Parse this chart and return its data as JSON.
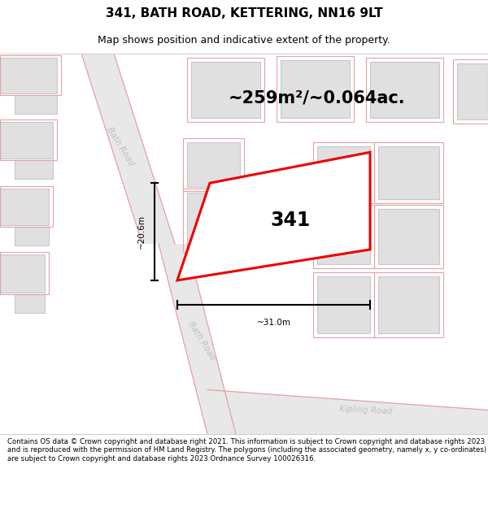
{
  "title": "341, BATH ROAD, KETTERING, NN16 9LT",
  "subtitle": "Map shows position and indicative extent of the property.",
  "area_text": "~259m²/~0.064ac.",
  "label_341": "341",
  "dim_height": "~20.6m",
  "dim_width": "~31.0m",
  "footer": "Contains OS data © Crown copyright and database right 2021. This information is subject to Crown copyright and database rights 2023 and is reproduced with the permission of HM Land Registry. The polygons (including the associated geometry, namely x, y co-ordinates) are subject to Crown copyright and database rights 2023 Ordnance Survey 100026316.",
  "bg_color": "#ffffff",
  "map_bg": "#f7f7f7",
  "road_color": "#e8e8e8",
  "building_fill": "#e0e0e0",
  "building_stroke": "#c8c8c8",
  "pink_line": "#e8a0a0",
  "red_plot": "#ee0000",
  "road_label_color": "#c0c0c0",
  "title_fontsize": 11,
  "subtitle_fontsize": 9,
  "area_fontsize": 15,
  "label_fontsize": 17,
  "footer_fontsize": 6.2,
  "road_label_fontsize": 7.5
}
